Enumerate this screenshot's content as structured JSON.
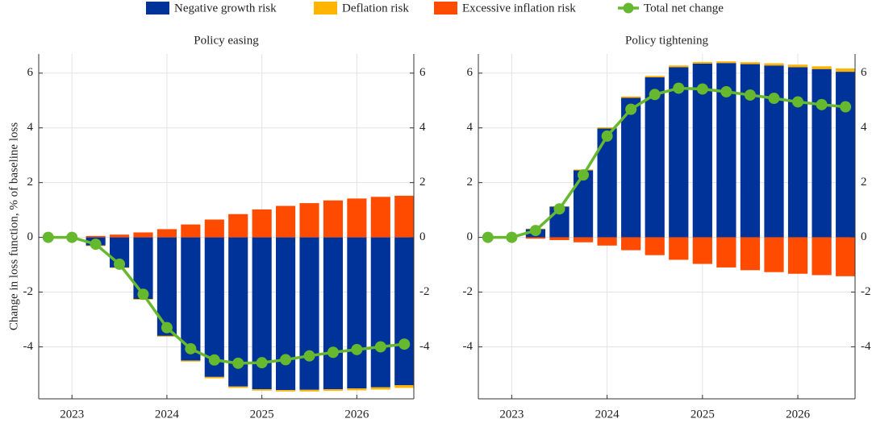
{
  "chart_data": [
    {
      "type": "combo",
      "title": "Policy easing",
      "ylabel": "Change in loss function, % of baseline loss",
      "x": [
        2022.75,
        2023,
        2023.25,
        2023.5,
        2023.75,
        2024,
        2024.25,
        2024.5,
        2024.75,
        2025,
        2025.25,
        2025.5,
        2025.75,
        2026,
        2026.25,
        2026.5
      ],
      "xlim": [
        2022.65,
        2026.6
      ],
      "xticks": [
        2023,
        2024,
        2025,
        2026
      ],
      "ylim": [
        -5.9,
        6.7
      ],
      "yticks": [
        -4,
        -2,
        0,
        2,
        4,
        6
      ],
      "grid": true,
      "stacked": true,
      "series": [
        {
          "name": "Negative growth risk",
          "type": "bar",
          "color": "#003399",
          "values": [
            0,
            0,
            -0.3,
            -1.1,
            -2.25,
            -3.6,
            -4.5,
            -5.1,
            -5.45,
            -5.55,
            -5.58,
            -5.57,
            -5.55,
            -5.52,
            -5.48,
            -5.4
          ]
        },
        {
          "name": "Deflation risk",
          "type": "bar",
          "color": "#ffb400",
          "values": [
            0,
            0,
            -0.02,
            -0.02,
            -0.03,
            -0.03,
            -0.04,
            -0.05,
            -0.05,
            -0.05,
            -0.05,
            -0.06,
            -0.06,
            -0.07,
            -0.08,
            -0.1
          ]
        },
        {
          "name": "Excessive inflation risk",
          "type": "bar",
          "color": "#ff4b00",
          "values": [
            0,
            0,
            0.05,
            0.1,
            0.18,
            0.3,
            0.47,
            0.65,
            0.85,
            1.02,
            1.15,
            1.25,
            1.35,
            1.42,
            1.48,
            1.52
          ]
        },
        {
          "name": "Total net change",
          "type": "line",
          "color": "#66b82e",
          "values": [
            0,
            0,
            -0.25,
            -0.98,
            -2.08,
            -3.3,
            -4.07,
            -4.48,
            -4.6,
            -4.58,
            -4.47,
            -4.33,
            -4.2,
            -4.1,
            -4.0,
            -3.9
          ]
        }
      ]
    },
    {
      "type": "combo",
      "title": "Policy tightening",
      "x": [
        2022.75,
        2023,
        2023.25,
        2023.5,
        2023.75,
        2024,
        2024.25,
        2024.5,
        2024.75,
        2025,
        2025.25,
        2025.5,
        2025.75,
        2026,
        2026.25,
        2026.5
      ],
      "xlim": [
        2022.65,
        2026.6
      ],
      "xticks": [
        2023,
        2024,
        2025,
        2026
      ],
      "ylim": [
        -5.9,
        6.7
      ],
      "yticks": [
        -4,
        -2,
        0,
        2,
        4,
        6
      ],
      "grid": true,
      "stacked": true,
      "series": [
        {
          "name": "Negative growth risk",
          "type": "bar",
          "color": "#003399",
          "values": [
            0,
            0,
            0.3,
            1.12,
            2.45,
            3.98,
            5.1,
            5.85,
            6.22,
            6.35,
            6.37,
            6.33,
            6.28,
            6.22,
            6.15,
            6.05
          ]
        },
        {
          "name": "Deflation risk",
          "type": "bar",
          "color": "#ffb400",
          "values": [
            0,
            0,
            0.02,
            0.02,
            0.03,
            0.04,
            0.05,
            0.05,
            0.06,
            0.06,
            0.06,
            0.07,
            0.08,
            0.09,
            0.1,
            0.12
          ]
        },
        {
          "name": "Excessive inflation risk",
          "type": "bar",
          "color": "#ff4b00",
          "values": [
            0,
            0,
            -0.05,
            -0.1,
            -0.18,
            -0.3,
            -0.47,
            -0.65,
            -0.82,
            -0.97,
            -1.1,
            -1.2,
            -1.27,
            -1.33,
            -1.38,
            -1.42
          ]
        },
        {
          "name": "Total net change",
          "type": "line",
          "color": "#66b82e",
          "values": [
            0,
            0,
            0.25,
            1.04,
            2.28,
            3.7,
            4.68,
            5.22,
            5.45,
            5.42,
            5.32,
            5.2,
            5.08,
            4.95,
            4.85,
            4.77
          ]
        }
      ]
    }
  ]
}
